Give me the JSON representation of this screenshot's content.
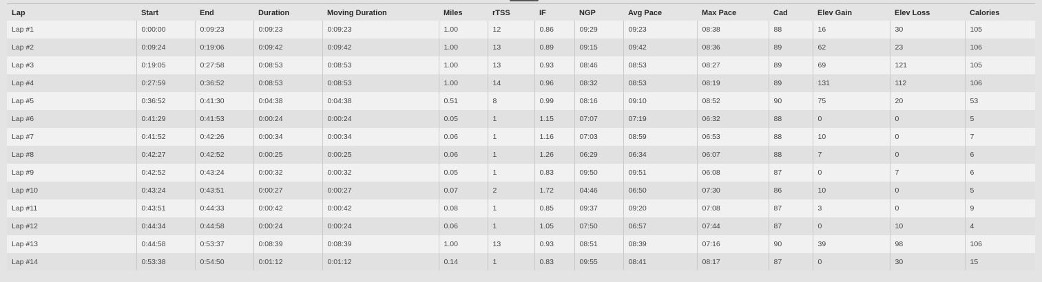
{
  "table": {
    "columns": [
      "Lap",
      "Start",
      "End",
      "Duration",
      "Moving Duration",
      "Miles",
      "rTSS",
      "IF",
      "NGP",
      "Avg Pace",
      "Max Pace",
      "Cad",
      "Elev Gain",
      "Elev Loss",
      "Calories"
    ],
    "rows": [
      [
        "Lap #1",
        "0:00:00",
        "0:09:23",
        "0:09:23",
        "0:09:23",
        "1.00",
        "12",
        "0.86",
        "09:29",
        "09:23",
        "08:38",
        "88",
        "16",
        "30",
        "105"
      ],
      [
        "Lap #2",
        "0:09:24",
        "0:19:06",
        "0:09:42",
        "0:09:42",
        "1.00",
        "13",
        "0.89",
        "09:15",
        "09:42",
        "08:36",
        "89",
        "62",
        "23",
        "106"
      ],
      [
        "Lap #3",
        "0:19:05",
        "0:27:58",
        "0:08:53",
        "0:08:53",
        "1.00",
        "13",
        "0.93",
        "08:46",
        "08:53",
        "08:27",
        "89",
        "69",
        "121",
        "105"
      ],
      [
        "Lap #4",
        "0:27:59",
        "0:36:52",
        "0:08:53",
        "0:08:53",
        "1.00",
        "14",
        "0.96",
        "08:32",
        "08:53",
        "08:19",
        "89",
        "131",
        "112",
        "106"
      ],
      [
        "Lap #5",
        "0:36:52",
        "0:41:30",
        "0:04:38",
        "0:04:38",
        "0.51",
        "8",
        "0.99",
        "08:16",
        "09:10",
        "08:52",
        "90",
        "75",
        "20",
        "53"
      ],
      [
        "Lap #6",
        "0:41:29",
        "0:41:53",
        "0:00:24",
        "0:00:24",
        "0.05",
        "1",
        "1.15",
        "07:07",
        "07:19",
        "06:32",
        "88",
        "0",
        "0",
        "5"
      ],
      [
        "Lap #7",
        "0:41:52",
        "0:42:26",
        "0:00:34",
        "0:00:34",
        "0.06",
        "1",
        "1.16",
        "07:03",
        "08:59",
        "06:53",
        "88",
        "10",
        "0",
        "7"
      ],
      [
        "Lap #8",
        "0:42:27",
        "0:42:52",
        "0:00:25",
        "0:00:25",
        "0.06",
        "1",
        "1.26",
        "06:29",
        "06:34",
        "06:07",
        "88",
        "7",
        "0",
        "6"
      ],
      [
        "Lap #9",
        "0:42:52",
        "0:43:24",
        "0:00:32",
        "0:00:32",
        "0.05",
        "1",
        "0.83",
        "09:50",
        "09:51",
        "06:08",
        "87",
        "0",
        "7",
        "6"
      ],
      [
        "Lap #10",
        "0:43:24",
        "0:43:51",
        "0:00:27",
        "0:00:27",
        "0.07",
        "2",
        "1.72",
        "04:46",
        "06:50",
        "07:30",
        "86",
        "10",
        "0",
        "5"
      ],
      [
        "Lap #11",
        "0:43:51",
        "0:44:33",
        "0:00:42",
        "0:00:42",
        "0.08",
        "1",
        "0.85",
        "09:37",
        "09:20",
        "07:08",
        "87",
        "3",
        "0",
        "9"
      ],
      [
        "Lap #12",
        "0:44:34",
        "0:44:58",
        "0:00:24",
        "0:00:24",
        "0.06",
        "1",
        "1.05",
        "07:50",
        "06:57",
        "07:44",
        "87",
        "0",
        "10",
        "4"
      ],
      [
        "Lap #13",
        "0:44:58",
        "0:53:37",
        "0:08:39",
        "0:08:39",
        "1.00",
        "13",
        "0.93",
        "08:51",
        "08:39",
        "07:16",
        "90",
        "39",
        "98",
        "106"
      ],
      [
        "Lap #14",
        "0:53:38",
        "0:54:50",
        "0:01:12",
        "0:01:12",
        "0.14",
        "1",
        "0.83",
        "09:55",
        "08:41",
        "08:17",
        "87",
        "0",
        "30",
        "15"
      ]
    ]
  },
  "colors": {
    "background": "#e4e4e4",
    "row_light": "#f1f1f1",
    "row_dark": "#e1e1e1",
    "column_divider": "#c9c9c9",
    "text": "#444444"
  }
}
